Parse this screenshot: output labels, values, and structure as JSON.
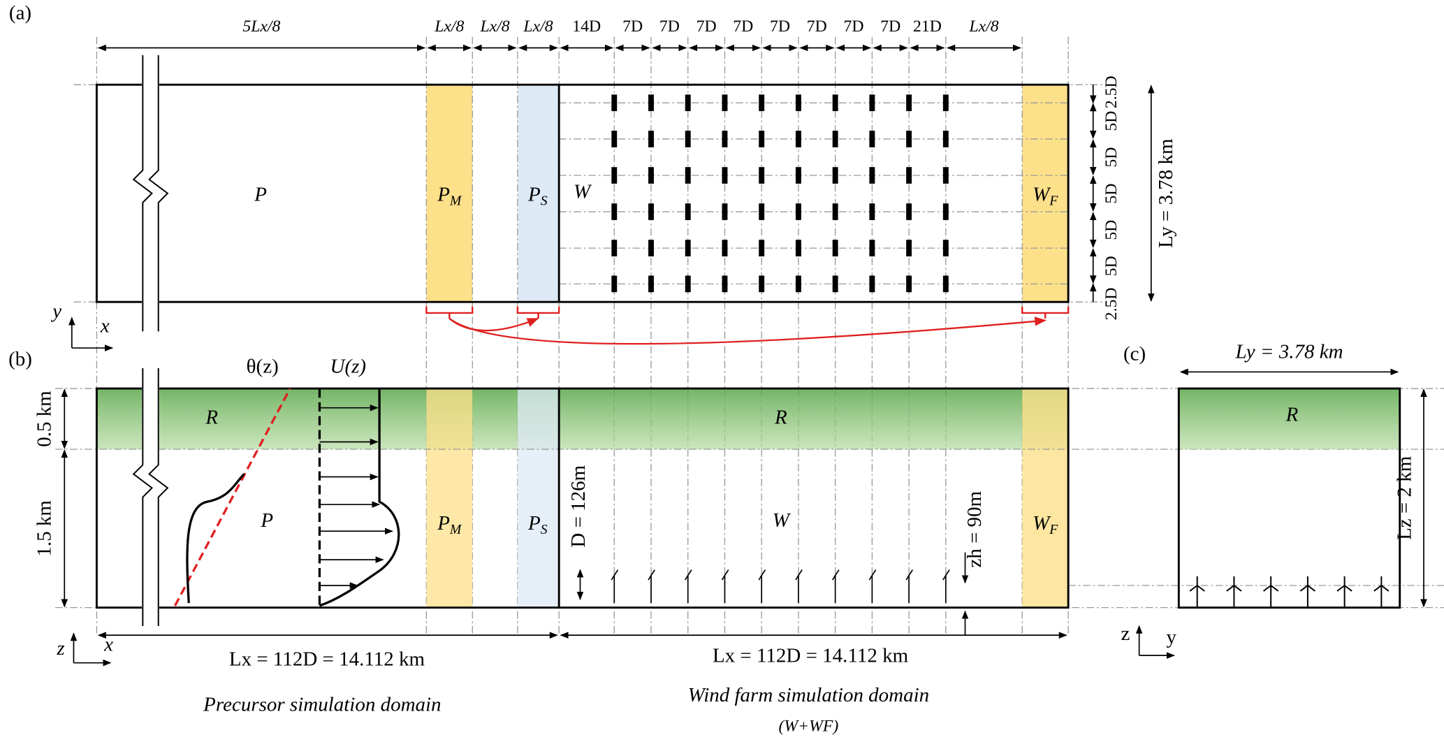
{
  "panels": [
    "(a)",
    "(b)",
    "(c)"
  ],
  "top_dims": [
    "5Lx/8",
    "Lx/8",
    "Lx/8",
    "Lx/8",
    "14D",
    "7D",
    "7D",
    "7D",
    "7D",
    "7D",
    "7D",
    "7D",
    "7D",
    "21D",
    "Lx/8"
  ],
  "right_dims": [
    "2.5D",
    "5D",
    "5D",
    "5D",
    "5D",
    "5D",
    "2.5D"
  ],
  "ly_a": "Ly = 3.78 km",
  "regions_a": [
    {
      "main": "P",
      "sub": ""
    },
    {
      "main": "P",
      "sub": "M"
    },
    {
      "main": "P",
      "sub": "S"
    },
    {
      "main": "W",
      "sub": ""
    },
    {
      "main": "W",
      "sub": "F"
    }
  ],
  "axes_a": [
    "y",
    "x"
  ],
  "profiles": [
    "θ(z)",
    "U(z)"
  ],
  "heights": [
    "0.5 km",
    "1.5 km"
  ],
  "regions_b": [
    {
      "main": "R",
      "sub": ""
    },
    {
      "main": "R",
      "sub": ""
    },
    {
      "main": "P",
      "sub": ""
    },
    {
      "main": "P",
      "sub": "M"
    },
    {
      "main": "P",
      "sub": "S"
    },
    {
      "main": "W",
      "sub": ""
    },
    {
      "main": "W",
      "sub": "F"
    }
  ],
  "rotor": "D = 126m",
  "hub": "zh = 90m",
  "lx": [
    "Lx = 112D = 14.112 km",
    "Lx = 112D = 14.112 km"
  ],
  "axes_b": [
    "z",
    "x"
  ],
  "captions": [
    "Precursor simulation domain",
    "Wind farm simulation domain",
    "(W+WF)"
  ],
  "panel_c": {
    "ly": "Ly = 3.78 km",
    "region": "R",
    "lz": "Lz = 2 km",
    "axes": [
      "z",
      "y"
    ]
  }
}
